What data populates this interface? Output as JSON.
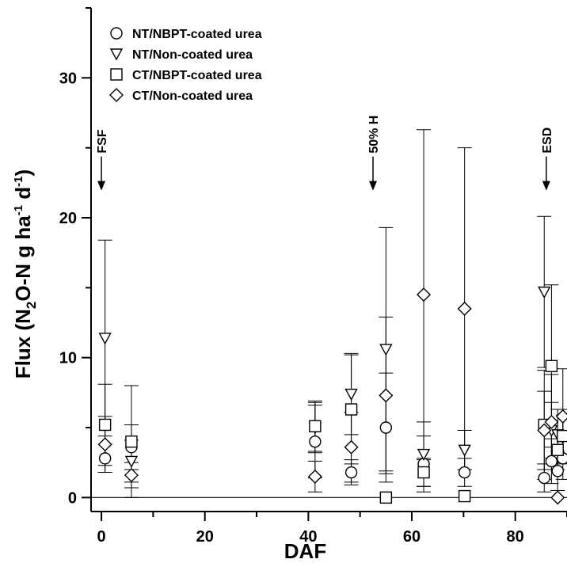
{
  "chart_data": {
    "type": "scatter",
    "xlabel": "DAF",
    "ylabel": {
      "base": "Flux (N",
      "sub1": "2",
      "mid": "O-N g ha",
      "sup1": "-1",
      "mid2": " d",
      "sup2": "-1",
      "end": ")"
    },
    "xlim": [
      -2,
      90
    ],
    "ylim": [
      -1,
      35
    ],
    "xticks": [
      0,
      20,
      40,
      60,
      80
    ],
    "yticks": [
      0,
      10,
      20,
      30
    ],
    "grid": false,
    "legend_position": "top-left",
    "zero_line": true,
    "annotations": [
      {
        "label": "FSF",
        "x": 0,
        "arrow_y": 22
      },
      {
        "label": "50% H",
        "x": 52.5,
        "arrow_y": 22
      },
      {
        "label": "ESD",
        "x": 86,
        "arrow_y": 22
      }
    ],
    "series": [
      {
        "name": "NT/NBPT-coated urea",
        "marker": "circle",
        "points": [
          {
            "x": 0.7,
            "y": 2.8,
            "err": 1.0
          },
          {
            "x": 5.8,
            "y": 3.6,
            "err": 1.6
          },
          {
            "x": 41.3,
            "y": 4.0,
            "err": 2.6
          },
          {
            "x": 48.3,
            "y": 1.8,
            "err": 0.9
          },
          {
            "x": 55.0,
            "y": 5.0,
            "err": 3.9
          },
          {
            "x": 62.3,
            "y": 2.4,
            "err": 2.0
          },
          {
            "x": 70.2,
            "y": 1.8,
            "err": 1.0
          },
          {
            "x": 85.6,
            "y": 1.4,
            "err": 1.0
          },
          {
            "x": 87.0,
            "y": 2.6,
            "err": 1.6
          },
          {
            "x": 88.2,
            "y": 1.9,
            "err": 1.4
          },
          {
            "x": 89.2,
            "y": 2.8,
            "err": 1.5
          }
        ]
      },
      {
        "name": "NT/Non-coated urea",
        "marker": "triangle-down",
        "points": [
          {
            "x": 0.7,
            "y": 11.4,
            "err": 7.0
          },
          {
            "x": 5.8,
            "y": 2.6,
            "err": 1.5
          },
          {
            "x": 41.3,
            "y": 5.0,
            "err": 1.8
          },
          {
            "x": 48.3,
            "y": 7.4,
            "err": 2.9
          },
          {
            "x": 55.0,
            "y": 10.6,
            "err": 8.7
          },
          {
            "x": 62.3,
            "y": 3.1,
            "err": 2.3
          },
          {
            "x": 70.2,
            "y": 3.4,
            "err": 1.4
          },
          {
            "x": 85.6,
            "y": 14.7,
            "err": 5.4
          },
          {
            "x": 87.0,
            "y": 4.8,
            "err": 2.0
          },
          {
            "x": 88.2,
            "y": 4.5,
            "err": 1.8
          },
          {
            "x": 89.2,
            "y": 4.3,
            "err": 1.6
          }
        ]
      },
      {
        "name": "CT/NBPT-coated urea",
        "marker": "square",
        "points": [
          {
            "x": 0.7,
            "y": 5.2,
            "err": 2.9
          },
          {
            "x": 5.8,
            "y": 4.0,
            "err": 4.0
          },
          {
            "x": 41.3,
            "y": 5.1,
            "err": 1.8
          },
          {
            "x": 48.3,
            "y": 6.3,
            "err": 3.9
          },
          {
            "x": 55.0,
            "y": 0.0,
            "err": 0
          },
          {
            "x": 62.3,
            "y": 1.8,
            "err": 1.0
          },
          {
            "x": 70.2,
            "y": 0.1,
            "err": 0
          },
          {
            "x": 85.6,
            "y": 5.2,
            "err": 3.9
          },
          {
            "x": 87.0,
            "y": 9.4,
            "err": 5.8
          },
          {
            "x": 88.2,
            "y": 3.4,
            "err": 1.4
          },
          {
            "x": 89.2,
            "y": 4.4,
            "err": 1.9
          }
        ]
      },
      {
        "name": "CT/Non-coated urea",
        "marker": "diamond",
        "points": [
          {
            "x": 0.7,
            "y": 3.8,
            "err": 2.0
          },
          {
            "x": 5.8,
            "y": 1.6,
            "err": 0.9
          },
          {
            "x": 41.3,
            "y": 1.5,
            "err": 1.1
          },
          {
            "x": 48.3,
            "y": 3.6,
            "err": 2.5
          },
          {
            "x": 55.0,
            "y": 7.3,
            "err": 5.6
          },
          {
            "x": 62.3,
            "y": 14.5,
            "err": 11.8
          },
          {
            "x": 70.2,
            "y": 13.5,
            "err": 11.5
          },
          {
            "x": 85.6,
            "y": 4.8,
            "err": 2.8
          },
          {
            "x": 87.0,
            "y": 5.4,
            "err": 3.4
          },
          {
            "x": 88.2,
            "y": 0.0,
            "err": 0
          },
          {
            "x": 89.2,
            "y": 5.8,
            "err": 3.4
          }
        ]
      }
    ]
  }
}
